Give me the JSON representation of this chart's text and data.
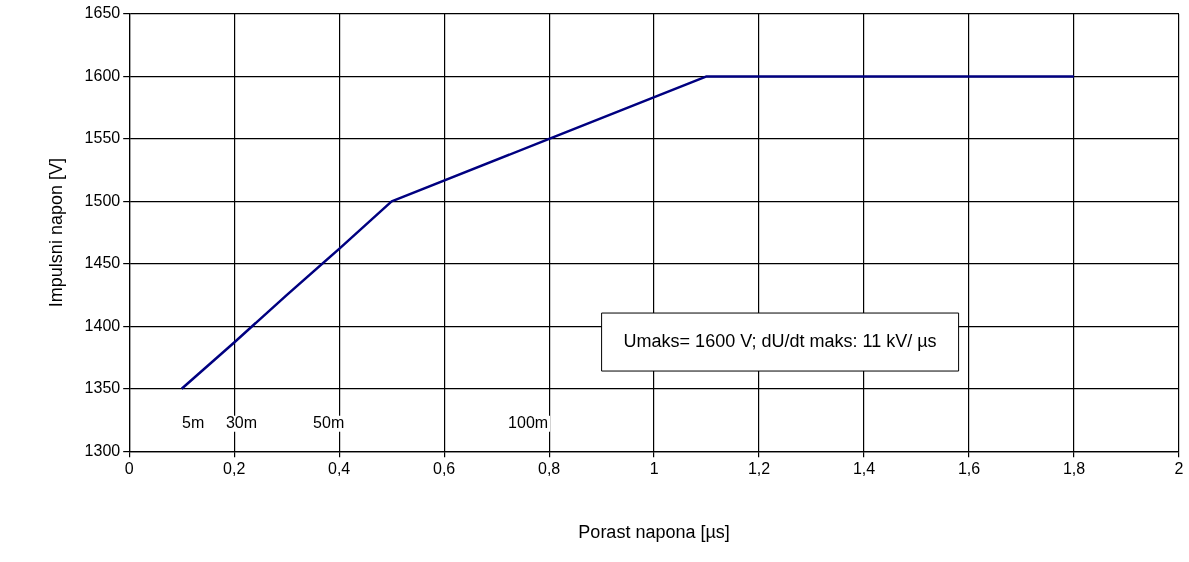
{
  "chart_data": {
    "type": "line",
    "xlabel": "Porast napona [µs]",
    "ylabel": "Impulsni napon [V]",
    "x": [
      0.1,
      0.2,
      0.3,
      0.4,
      0.5,
      0.8,
      1.1,
      1.8
    ],
    "series": [
      {
        "color": "#000080",
        "values": [
          1350,
          1387,
          1425,
          1462,
          1500,
          1550,
          1600,
          1600
        ]
      }
    ],
    "xlim": [
      0,
      2
    ],
    "xticks": [
      0,
      {
        "value": 0.2,
        "label": "0,2"
      },
      {
        "value": 0.4,
        "label": "0,4"
      },
      {
        "value": 0.6,
        "label": "0,6"
      },
      {
        "value": 0.8,
        "label": "0,8"
      },
      1,
      {
        "value": 1.2,
        "label": "1,2"
      },
      {
        "value": 1.4,
        "label": "1,4"
      },
      {
        "value": 1.6,
        "label": "1,6"
      },
      {
        "value": 1.8,
        "label": "1,8"
      },
      2
    ],
    "ylim": [
      1300,
      1650
    ],
    "yticks": [
      1300,
      1350,
      1400,
      1450,
      1500,
      1550,
      1600,
      1650
    ],
    "grid": true,
    "legend": false,
    "marker": "none",
    "line_style": "solid",
    "annotations": [
      "5m",
      "30m",
      "50m",
      "100m",
      "Umaks= 1600 V; dU/dt maks: 11 kV/ µs"
    ]
  }
}
